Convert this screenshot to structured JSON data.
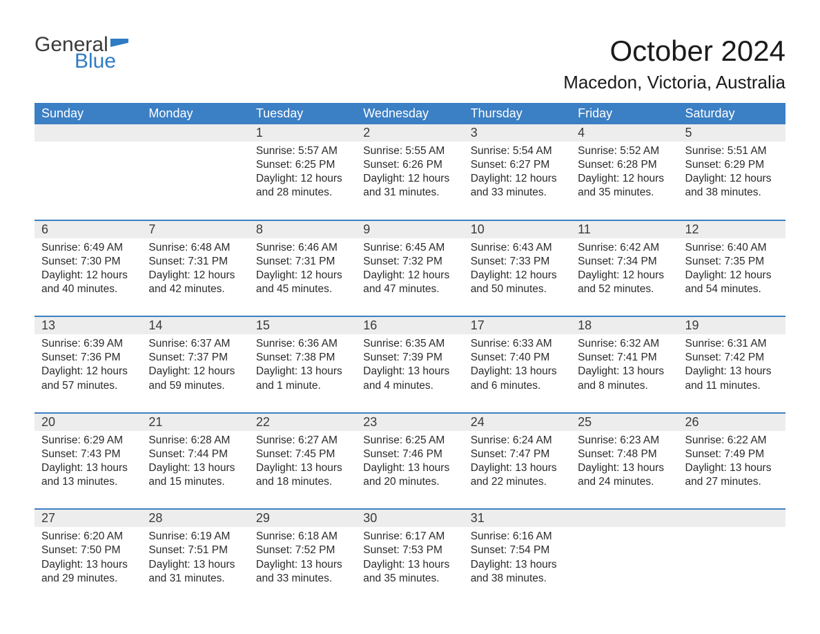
{
  "logo": {
    "text_top": "General",
    "text_bottom": "Blue",
    "top_color": "#3a3a3a",
    "bottom_color": "#2f7cc4",
    "flag_color": "#2f7cc4"
  },
  "title": "October 2024",
  "location": "Macedon, Victoria, Australia",
  "colors": {
    "header_bg": "#3b7fc4",
    "header_text": "#ffffff",
    "daynum_bg": "#ededed",
    "row_border": "#3b7fc4",
    "body_text": "#2a2a2a",
    "background": "#ffffff"
  },
  "typography": {
    "title_fontsize": 42,
    "location_fontsize": 26,
    "dayhead_fontsize": 18,
    "daynum_fontsize": 18,
    "daydata_fontsize": 15.5
  },
  "day_names": [
    "Sunday",
    "Monday",
    "Tuesday",
    "Wednesday",
    "Thursday",
    "Friday",
    "Saturday"
  ],
  "weeks": [
    [
      null,
      null,
      {
        "n": "1",
        "sunrise": "5:57 AM",
        "sunset": "6:25 PM",
        "daylight": "12 hours and 28 minutes."
      },
      {
        "n": "2",
        "sunrise": "5:55 AM",
        "sunset": "6:26 PM",
        "daylight": "12 hours and 31 minutes."
      },
      {
        "n": "3",
        "sunrise": "5:54 AM",
        "sunset": "6:27 PM",
        "daylight": "12 hours and 33 minutes."
      },
      {
        "n": "4",
        "sunrise": "5:52 AM",
        "sunset": "6:28 PM",
        "daylight": "12 hours and 35 minutes."
      },
      {
        "n": "5",
        "sunrise": "5:51 AM",
        "sunset": "6:29 PM",
        "daylight": "12 hours and 38 minutes."
      }
    ],
    [
      {
        "n": "6",
        "sunrise": "6:49 AM",
        "sunset": "7:30 PM",
        "daylight": "12 hours and 40 minutes."
      },
      {
        "n": "7",
        "sunrise": "6:48 AM",
        "sunset": "7:31 PM",
        "daylight": "12 hours and 42 minutes."
      },
      {
        "n": "8",
        "sunrise": "6:46 AM",
        "sunset": "7:31 PM",
        "daylight": "12 hours and 45 minutes."
      },
      {
        "n": "9",
        "sunrise": "6:45 AM",
        "sunset": "7:32 PM",
        "daylight": "12 hours and 47 minutes."
      },
      {
        "n": "10",
        "sunrise": "6:43 AM",
        "sunset": "7:33 PM",
        "daylight": "12 hours and 50 minutes."
      },
      {
        "n": "11",
        "sunrise": "6:42 AM",
        "sunset": "7:34 PM",
        "daylight": "12 hours and 52 minutes."
      },
      {
        "n": "12",
        "sunrise": "6:40 AM",
        "sunset": "7:35 PM",
        "daylight": "12 hours and 54 minutes."
      }
    ],
    [
      {
        "n": "13",
        "sunrise": "6:39 AM",
        "sunset": "7:36 PM",
        "daylight": "12 hours and 57 minutes."
      },
      {
        "n": "14",
        "sunrise": "6:37 AM",
        "sunset": "7:37 PM",
        "daylight": "12 hours and 59 minutes."
      },
      {
        "n": "15",
        "sunrise": "6:36 AM",
        "sunset": "7:38 PM",
        "daylight": "13 hours and 1 minute."
      },
      {
        "n": "16",
        "sunrise": "6:35 AM",
        "sunset": "7:39 PM",
        "daylight": "13 hours and 4 minutes."
      },
      {
        "n": "17",
        "sunrise": "6:33 AM",
        "sunset": "7:40 PM",
        "daylight": "13 hours and 6 minutes."
      },
      {
        "n": "18",
        "sunrise": "6:32 AM",
        "sunset": "7:41 PM",
        "daylight": "13 hours and 8 minutes."
      },
      {
        "n": "19",
        "sunrise": "6:31 AM",
        "sunset": "7:42 PM",
        "daylight": "13 hours and 11 minutes."
      }
    ],
    [
      {
        "n": "20",
        "sunrise": "6:29 AM",
        "sunset": "7:43 PM",
        "daylight": "13 hours and 13 minutes."
      },
      {
        "n": "21",
        "sunrise": "6:28 AM",
        "sunset": "7:44 PM",
        "daylight": "13 hours and 15 minutes."
      },
      {
        "n": "22",
        "sunrise": "6:27 AM",
        "sunset": "7:45 PM",
        "daylight": "13 hours and 18 minutes."
      },
      {
        "n": "23",
        "sunrise": "6:25 AM",
        "sunset": "7:46 PM",
        "daylight": "13 hours and 20 minutes."
      },
      {
        "n": "24",
        "sunrise": "6:24 AM",
        "sunset": "7:47 PM",
        "daylight": "13 hours and 22 minutes."
      },
      {
        "n": "25",
        "sunrise": "6:23 AM",
        "sunset": "7:48 PM",
        "daylight": "13 hours and 24 minutes."
      },
      {
        "n": "26",
        "sunrise": "6:22 AM",
        "sunset": "7:49 PM",
        "daylight": "13 hours and 27 minutes."
      }
    ],
    [
      {
        "n": "27",
        "sunrise": "6:20 AM",
        "sunset": "7:50 PM",
        "daylight": "13 hours and 29 minutes."
      },
      {
        "n": "28",
        "sunrise": "6:19 AM",
        "sunset": "7:51 PM",
        "daylight": "13 hours and 31 minutes."
      },
      {
        "n": "29",
        "sunrise": "6:18 AM",
        "sunset": "7:52 PM",
        "daylight": "13 hours and 33 minutes."
      },
      {
        "n": "30",
        "sunrise": "6:17 AM",
        "sunset": "7:53 PM",
        "daylight": "13 hours and 35 minutes."
      },
      {
        "n": "31",
        "sunrise": "6:16 AM",
        "sunset": "7:54 PM",
        "daylight": "13 hours and 38 minutes."
      },
      null,
      null
    ]
  ],
  "labels": {
    "sunrise": "Sunrise: ",
    "sunset": "Sunset: ",
    "daylight": "Daylight: "
  }
}
